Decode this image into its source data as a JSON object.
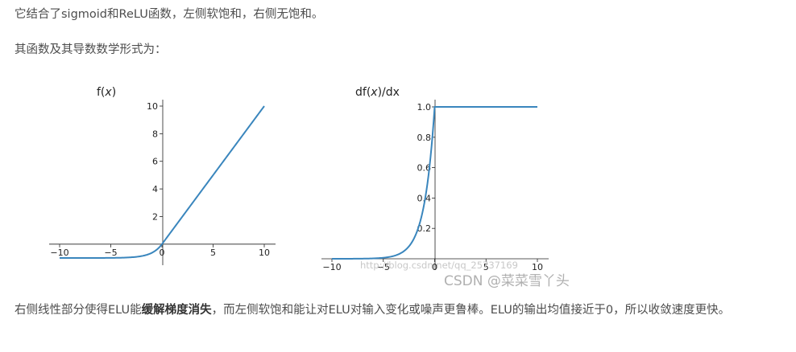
{
  "text": {
    "p1": "它结合了sigmoid和ReLU函数，左侧软饱和，右侧无饱和。",
    "p2": "其函数及其导数数学形式为：",
    "p3_a": "右侧线性部分使得ELU能",
    "p3_bold": "缓解梯度消失",
    "p3_b": "，而左侧软饱和能让对ELU对输入变化或噪声更鲁棒。ELU的输出均值接近于0，所以收敛速度更快。"
  },
  "watermark": {
    "url": "http://blog.csdn.net/qq_25737169",
    "csdn": "CSDN @菜菜雪丫头"
  },
  "colors": {
    "line": "#3a86bd",
    "axis": "#222222"
  },
  "chart_data": [
    {
      "type": "line",
      "title_prefix": "f(",
      "title_var": "x",
      "title_suffix": ")",
      "function": "ELU",
      "alpha": 1,
      "x_range": [
        -10,
        10
      ],
      "ylim": [
        -1,
        10
      ],
      "xticks": [
        -10,
        -5,
        0,
        5,
        10
      ],
      "yticks": [
        2,
        4,
        6,
        8,
        10
      ],
      "xtick_labels": [
        "−10",
        "−5",
        "0",
        "5",
        "10"
      ],
      "ytick_labels": [
        "2",
        "4",
        "6",
        "8",
        "10"
      ],
      "x": [
        -10,
        -8,
        -6,
        -4,
        -3,
        -2,
        -1.5,
        -1,
        -0.5,
        0,
        2,
        4,
        6,
        8,
        10
      ],
      "y": [
        -1.0,
        -1.0,
        -0.998,
        -0.982,
        -0.95,
        -0.865,
        -0.777,
        -0.632,
        -0.393,
        0,
        2,
        4,
        6,
        8,
        10
      ]
    },
    {
      "type": "line",
      "title_prefix": "df(",
      "title_var": "x",
      "title_suffix": ")/dx",
      "function": "ELU derivative",
      "alpha": 1,
      "x_range": [
        -10,
        10
      ],
      "ylim": [
        0,
        1
      ],
      "xticks": [
        -10,
        -5,
        0,
        5,
        10
      ],
      "yticks": [
        0.2,
        0.4,
        0.6,
        0.8,
        1.0
      ],
      "xtick_labels": [
        "−10",
        "−5",
        "0",
        "5",
        "10"
      ],
      "ytick_labels": [
        "0.2",
        "0.4",
        "0.6",
        "0.8",
        "1.0"
      ],
      "x": [
        -10,
        -8,
        -6,
        -5,
        -4,
        -3,
        -2,
        -1.5,
        -1,
        -0.5,
        0,
        2,
        4,
        6,
        8,
        10
      ],
      "y": [
        0.0,
        0.0003,
        0.0025,
        0.0067,
        0.018,
        0.05,
        0.135,
        0.223,
        0.368,
        0.607,
        1.0,
        1.0,
        1.0,
        1.0,
        1.0,
        1.0
      ]
    }
  ]
}
